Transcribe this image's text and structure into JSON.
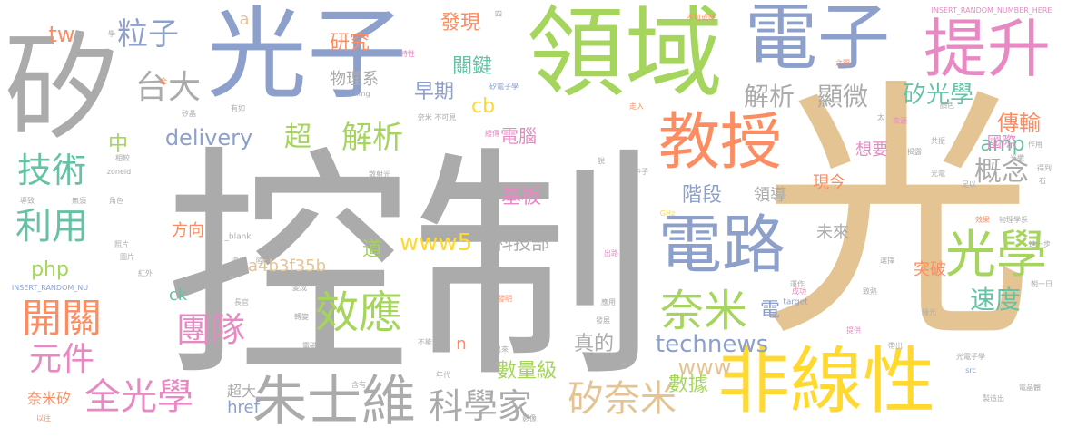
{
  "cloud": {
    "palette": {
      "gray": "#ababab",
      "green": "#a5d55c",
      "blue": "#8d9fcb",
      "tan": "#e5c494",
      "orange": "#fc8d62",
      "pink": "#e78ac3",
      "yellow": "#ffd92f",
      "teal": "#66c2a5"
    },
    "words": [
      {
        "text": "控制",
        "color": "#ababab"
      },
      {
        "text": "光",
        "color": "#e5c494"
      },
      {
        "text": "矽",
        "color": "#ababab"
      },
      {
        "text": "光子",
        "color": "#8d9fcb"
      },
      {
        "text": "領域",
        "color": "#a5d55c"
      },
      {
        "text": "電子",
        "color": "#8d9fcb"
      },
      {
        "text": "提升",
        "color": "#e78ac3"
      },
      {
        "text": "非線性",
        "color": "#ffd92f"
      },
      {
        "text": "教授",
        "color": "#fc8d62"
      },
      {
        "text": "電路",
        "color": "#8d9fcb"
      },
      {
        "text": "朱士維",
        "color": "#ababab"
      },
      {
        "text": "光學",
        "color": "#a5d55c"
      },
      {
        "text": "效應",
        "color": "#a5d55c"
      },
      {
        "text": "奈米",
        "color": "#a5d55c"
      },
      {
        "text": "科學家",
        "color": "#ababab"
      },
      {
        "text": "矽奈米",
        "color": "#e5c494"
      },
      {
        "text": "全光學",
        "color": "#e78ac3"
      },
      {
        "text": "開關",
        "color": "#fc8d62"
      },
      {
        "text": "元件",
        "color": "#e78ac3"
      },
      {
        "text": "利用",
        "color": "#66c2a5"
      },
      {
        "text": "技術",
        "color": "#66c2a5"
      },
      {
        "text": "粒子",
        "color": "#8d9fcb"
      },
      {
        "text": "台大",
        "color": "#ababab"
      },
      {
        "text": "超",
        "color": "#a5d55c"
      },
      {
        "text": "解析",
        "color": "#a5d55c"
      },
      {
        "text": "團隊",
        "color": "#e78ac3"
      },
      {
        "text": "解析",
        "color": "#ababab"
      },
      {
        "text": "顯微",
        "color": "#ababab"
      },
      {
        "text": "矽光學",
        "color": "#66c2a5"
      },
      {
        "text": "傳輸",
        "color": "#fc8d62"
      },
      {
        "text": "概念",
        "color": "#ababab"
      },
      {
        "text": "速度",
        "color": "#66c2a5"
      },
      {
        "text": "www5",
        "color": "#ffd92f"
      },
      {
        "text": "delivery",
        "color": "#8d9fcb"
      },
      {
        "text": "technews",
        "color": "#8d9fcb"
      },
      {
        "text": "www",
        "color": "#e5c494"
      },
      {
        "text": "amp",
        "color": "#66c2a5"
      },
      {
        "text": "php",
        "color": "#a5d55c"
      },
      {
        "text": "tw",
        "color": "#fc8d62"
      },
      {
        "text": "cb",
        "color": "#ffd92f"
      },
      {
        "text": "href",
        "color": "#8d9fcb"
      },
      {
        "text": "ck",
        "color": "#66c2a5"
      },
      {
        "text": "a4b3f35b",
        "color": "#e5c494"
      },
      {
        "text": "早期",
        "color": "#8d9fcb"
      },
      {
        "text": "研究",
        "color": "#fc8d62"
      },
      {
        "text": "發現",
        "color": "#fc8d62"
      },
      {
        "text": "關鍵",
        "color": "#66c2a5"
      },
      {
        "text": "物理系",
        "color": "#ababab"
      },
      {
        "text": "電腦",
        "color": "#e78ac3"
      },
      {
        "text": "基板",
        "color": "#e78ac3"
      },
      {
        "text": "階段",
        "color": "#8d9fcb"
      },
      {
        "text": "領導",
        "color": "#ababab"
      },
      {
        "text": "科技部",
        "color": "#ababab"
      },
      {
        "text": "數量級",
        "color": "#a5d55c"
      },
      {
        "text": "數據",
        "color": "#a5d55c"
      },
      {
        "text": "真的",
        "color": "#ababab"
      },
      {
        "text": "道",
        "color": "#a5d55c"
      },
      {
        "text": "方向",
        "color": "#fc8d62"
      },
      {
        "text": "電",
        "color": "#8d9fcb"
      },
      {
        "text": "中",
        "color": "#a5d55c"
      },
      {
        "text": "奈米矽",
        "color": "#fc8d62"
      },
      {
        "text": "超大",
        "color": "#ababab"
      },
      {
        "text": "國際",
        "color": "#e78ac3"
      },
      {
        "text": "想要",
        "color": "#e78ac3"
      },
      {
        "text": "現今",
        "color": "#fc8d62"
      },
      {
        "text": "突破",
        "color": "#fc8d62"
      },
      {
        "text": "未來",
        "color": "#ababab"
      },
      {
        "text": "n",
        "color": "#fc8d62"
      },
      {
        "text": "a",
        "color": "#e5c494"
      },
      {
        "text": "INSERT_RANDOM_NUMBER_HERE",
        "color": "#e78ac3"
      },
      {
        "text": "INSERT_RANDOM_NU",
        "color": "#8d9fcb"
      },
      {
        "text": "矽電子學",
        "color": "#8d9fcb"
      },
      {
        "text": "不可或缺",
        "color": "#fc8d62"
      },
      {
        "text": "_blank",
        "color": "#ababab"
      },
      {
        "text": "zoneid",
        "color": "#ababab"
      },
      {
        "text": "img",
        "color": "#ababab"
      },
      {
        "text": "aw",
        "color": "#ababab"
      },
      {
        "text": "target",
        "color": "#8d9fcb"
      },
      {
        "text": "GHz",
        "color": "#ffd92f"
      },
      {
        "text": "src",
        "color": "#8d9fcb"
      },
      {
        "text": "光纖",
        "color": "#ababab"
      },
      {
        "text": "物理學系",
        "color": "#ababab"
      },
      {
        "text": "電晶體",
        "color": "#ababab"
      },
      {
        "text": "成功",
        "color": "#e78ac3"
      },
      {
        "text": "散射光",
        "color": "#ababab"
      },
      {
        "text": "帶出",
        "color": "#ababab"
      },
      {
        "text": "光電",
        "color": "#ababab"
      },
      {
        "text": "緣光",
        "color": "#ababab"
      },
      {
        "text": "提供",
        "color": "#e78ac3"
      },
      {
        "text": "年代",
        "color": "#ababab"
      },
      {
        "text": "含有",
        "color": "#ababab"
      },
      {
        "text": "發明",
        "color": "#fc8d62"
      },
      {
        "text": "以往",
        "color": "#fc8d62"
      },
      {
        "text": "特性",
        "color": "#e78ac3"
      },
      {
        "text": "朝一日",
        "color": "#ababab"
      },
      {
        "text": "電磁",
        "color": "#ababab"
      },
      {
        "text": "顏色",
        "color": "#ababab"
      },
      {
        "text": "緩傳",
        "color": "#e78ac3"
      },
      {
        "text": "影像",
        "color": "#ababab"
      },
      {
        "text": "出路",
        "color": "#e78ac3"
      },
      {
        "text": "四",
        "color": "#ababab"
      },
      {
        "text": "學",
        "color": "#ababab"
      },
      {
        "text": "全",
        "color": "#fc8d62"
      },
      {
        "text": "來源",
        "color": "#e78ac3"
      },
      {
        "text": "太",
        "color": "#ababab"
      },
      {
        "text": "之間",
        "color": "#fc8d62"
      },
      {
        "text": "走入",
        "color": "#fc8d62"
      },
      {
        "text": "矽晶",
        "color": "#ababab"
      },
      {
        "text": "有如",
        "color": "#ababab"
      },
      {
        "text": "奈米 不可見",
        "color": "#ababab"
      },
      {
        "text": "局限",
        "color": "#ababab"
      },
      {
        "text": "說",
        "color": "#ababab"
      },
      {
        "text": "全影",
        "color": "#ababab"
      },
      {
        "text": "中子",
        "color": "#ababab"
      },
      {
        "text": "相較",
        "color": "#ababab"
      },
      {
        "text": "導致",
        "color": "#ababab"
      },
      {
        "text": "無須",
        "color": "#ababab"
      },
      {
        "text": "角色",
        "color": "#ababab"
      },
      {
        "text": "能力",
        "color": "#ababab"
      },
      {
        "text": "長官",
        "color": "#ababab"
      },
      {
        "text": "效果",
        "color": "#fc8d62"
      },
      {
        "text": "共振",
        "color": "#ababab"
      },
      {
        "text": "足以",
        "color": "#ababab"
      },
      {
        "text": "得到",
        "color": "#ababab"
      },
      {
        "text": "石",
        "color": "#ababab"
      },
      {
        "text": "照片",
        "color": "#ababab"
      },
      {
        "text": "紅外",
        "color": "#ababab"
      },
      {
        "text": "選擇",
        "color": "#ababab"
      },
      {
        "text": "致熱",
        "color": "#ababab"
      },
      {
        "text": "運作",
        "color": "#ababab"
      },
      {
        "text": "發展",
        "color": "#ababab"
      },
      {
        "text": "應用",
        "color": "#ababab"
      },
      {
        "text": "圖片",
        "color": "#ababab"
      },
      {
        "text": "進一步",
        "color": "#ababab"
      },
      {
        "text": "光電子學",
        "color": "#ababab"
      },
      {
        "text": "製造出",
        "color": "#ababab"
      },
      {
        "text": "揭露",
        "color": "#ababab"
      },
      {
        "text": "作用",
        "color": "#ababab"
      },
      {
        "text": "抵抗",
        "color": "#ababab"
      },
      {
        "text": "海邊",
        "color": "#ababab"
      },
      {
        "text": "陸地",
        "color": "#ababab"
      },
      {
        "text": "變成",
        "color": "#ababab"
      },
      {
        "text": "轉變",
        "color": "#ababab"
      },
      {
        "text": "出來",
        "color": "#ababab"
      },
      {
        "text": "不能",
        "color": "#ababab"
      }
    ]
  }
}
